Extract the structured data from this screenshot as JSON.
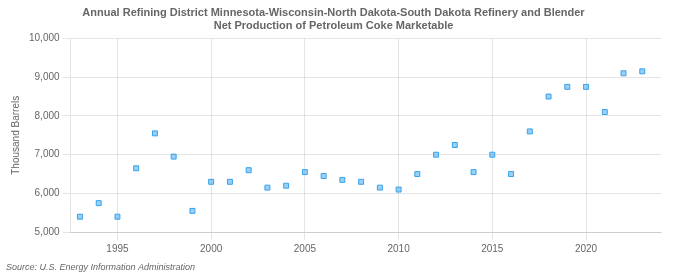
{
  "chart_data": {
    "type": "scatter",
    "title": "Annual Refining District Minnesota-Wisconsin-North Dakota-South Dakota Refinery and Blender\nNet Production of Petroleum Coke Marketable",
    "y_label": "Thousand Barrels",
    "annotations": [
      "Source: U.S. Energy Information Administration"
    ],
    "x": [
      1993,
      1994,
      1995,
      1996,
      1997,
      1998,
      1999,
      2000,
      2001,
      2002,
      2003,
      2004,
      2005,
      2006,
      2007,
      2008,
      2009,
      2010,
      2011,
      2012,
      2013,
      2014,
      2015,
      2016,
      2017,
      2018,
      2019,
      2020,
      2021,
      2022,
      2023
    ],
    "values": [
      5400,
      5750,
      5400,
      6650,
      7550,
      6950,
      5550,
      6300,
      6300,
      6600,
      6150,
      6200,
      6550,
      6450,
      6350,
      6300,
      6150,
      6100,
      6500,
      7000,
      7250,
      6550,
      7000,
      6500,
      7600,
      8500,
      8750,
      8750,
      8100,
      9100,
      9150
    ],
    "xlim": [
      1992.5,
      2024
    ],
    "xticks": [
      1995,
      2000,
      2005,
      2010,
      2015,
      2020
    ],
    "ylim": [
      5000,
      10000
    ],
    "yticks": [
      {
        "value": 5000,
        "label": "5,000"
      },
      {
        "value": 6000,
        "label": "6,000"
      },
      {
        "value": 7000,
        "label": "7,000"
      },
      {
        "value": 8000,
        "label": "8,000"
      },
      {
        "value": 9000,
        "label": "9,000"
      },
      {
        "value": 10000,
        "label": "10,000"
      }
    ],
    "marker": "square",
    "grid": true
  }
}
